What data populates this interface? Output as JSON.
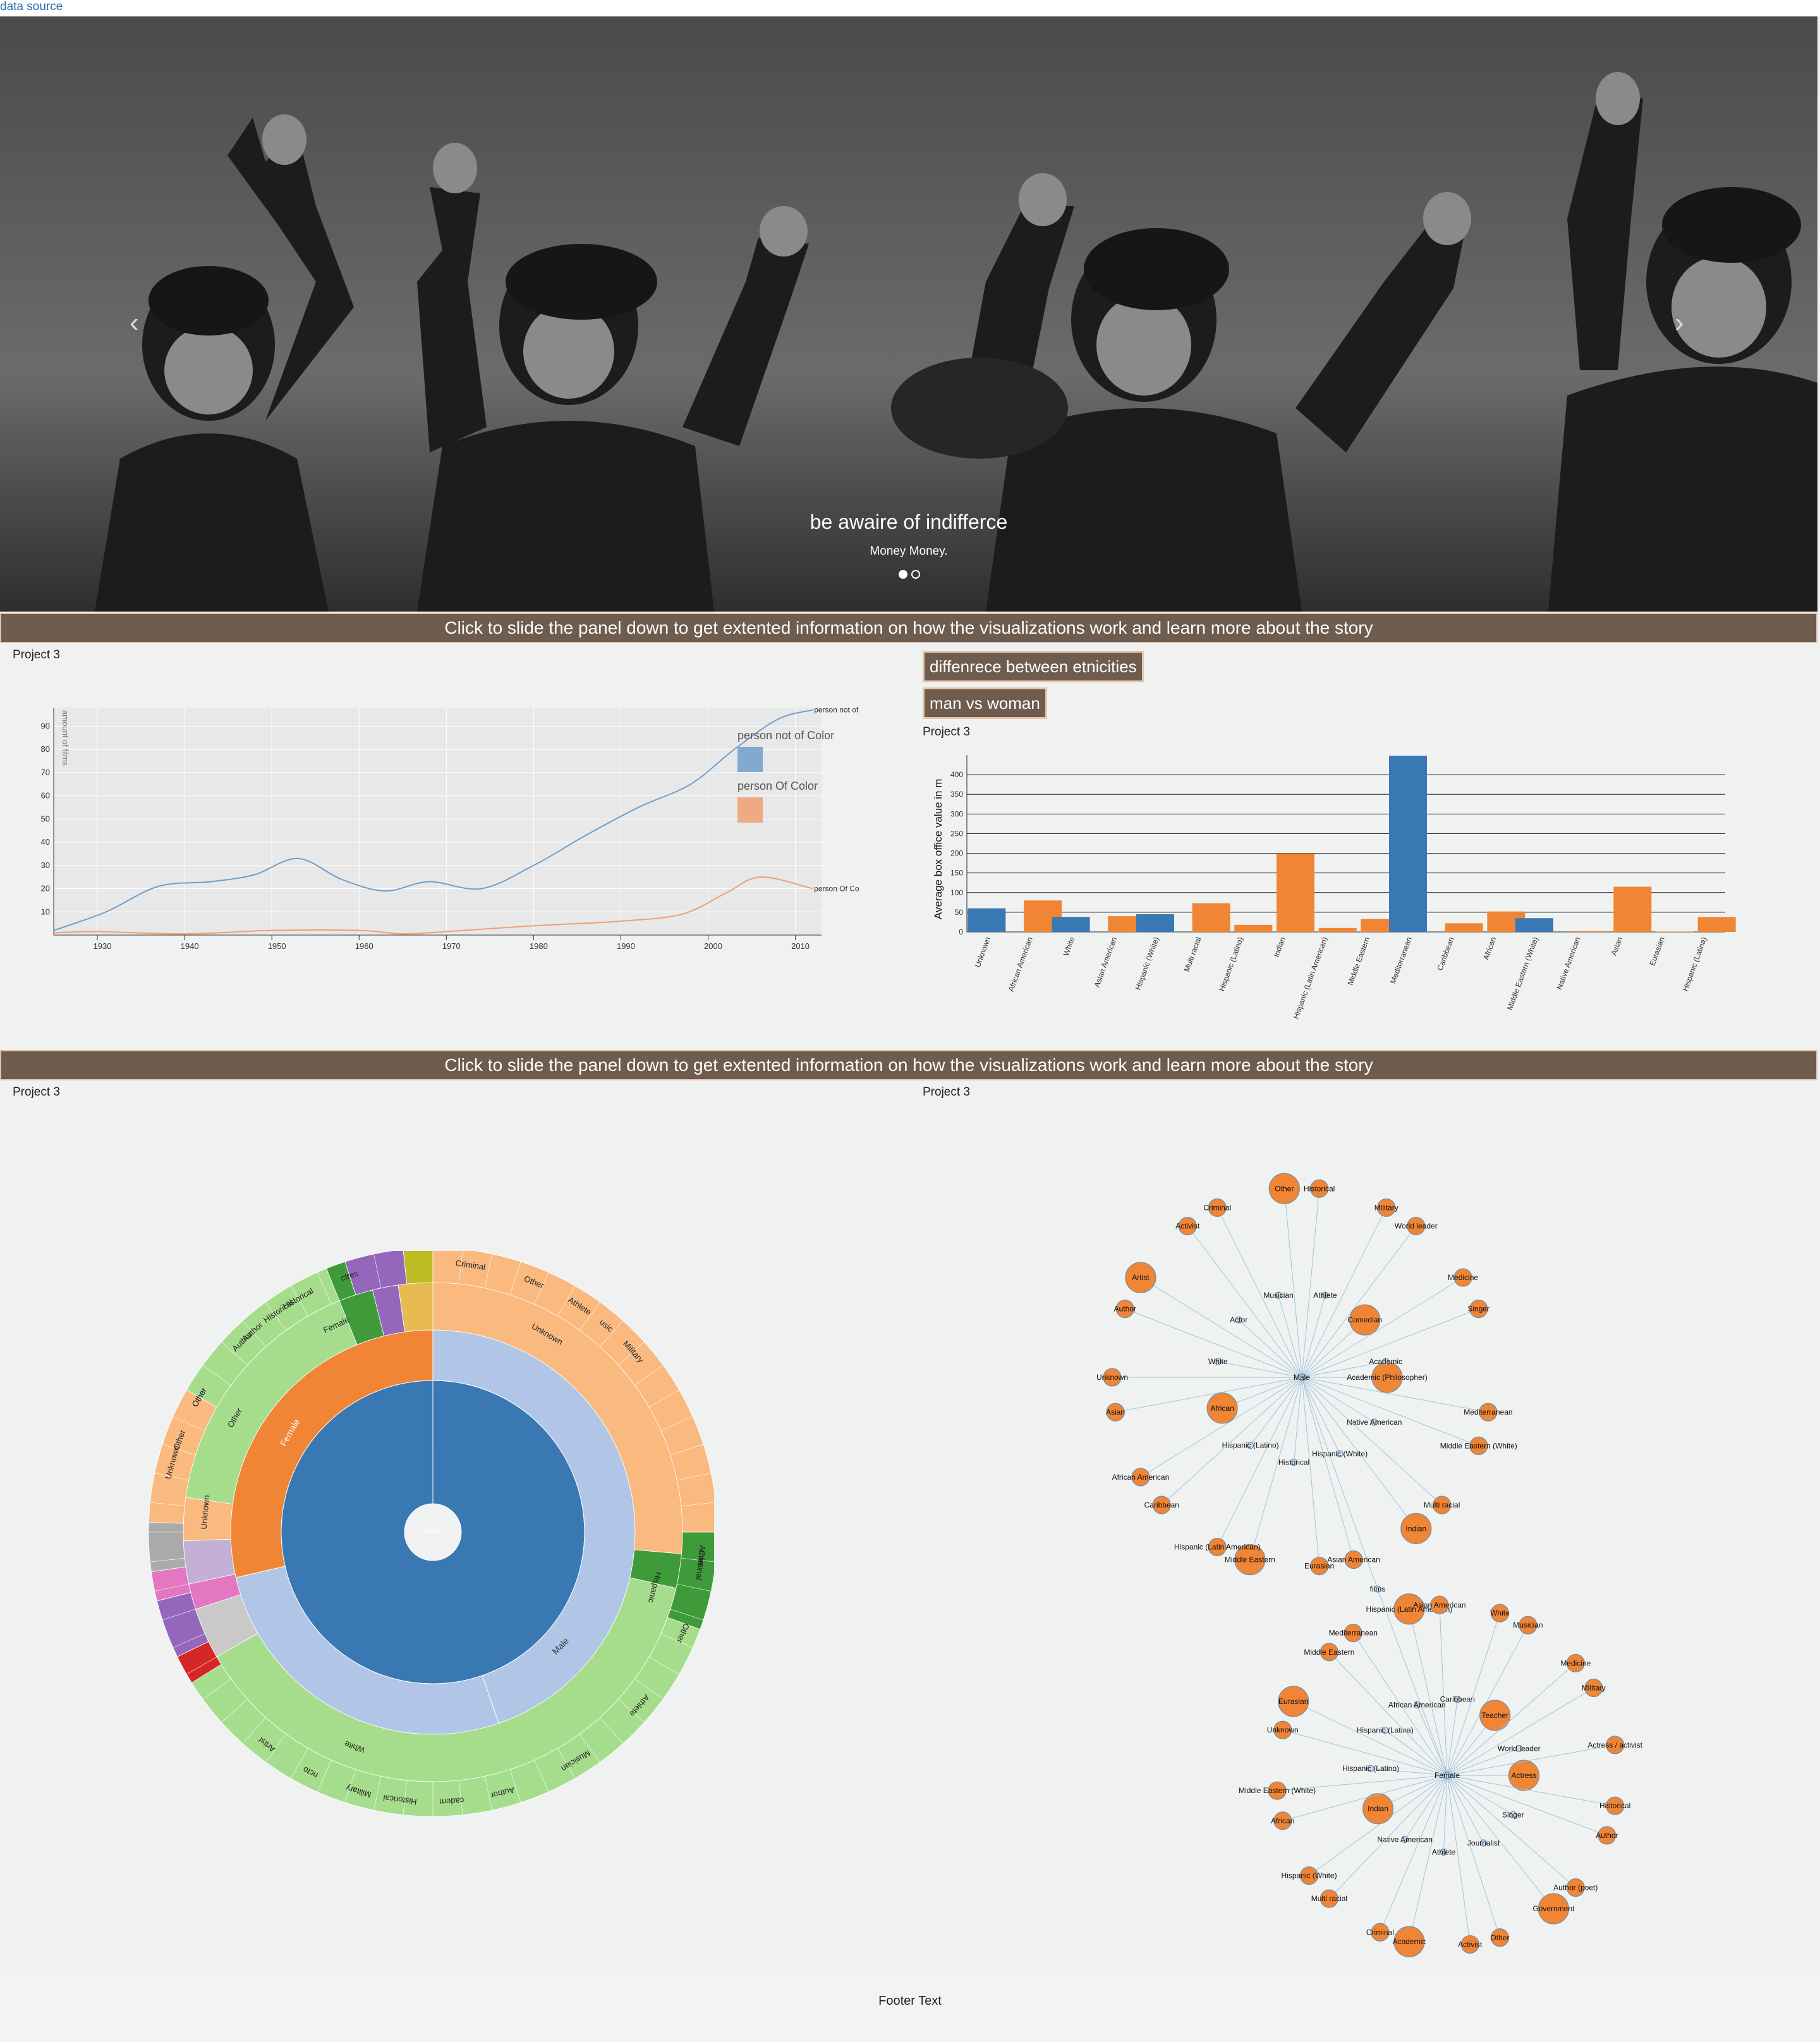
{
  "header": {
    "data_source_link": "data source"
  },
  "carousel": {
    "caption_title": "be awaire of indifferce",
    "caption_subtitle": "Money Money.",
    "slides": 2,
    "active_slide": 1
  },
  "panel_bar_1": "Click to slide the panel down to get extented information on how the visualizations work and learn more about the story",
  "panel_bar_2": "Click to slide the panel down to get extented information on how the visualizations work and learn more about the story",
  "project_labels": {
    "line": "Project 3",
    "bar": "Project 3",
    "sunburst": "Project 3",
    "network": "Project 3"
  },
  "buttons": {
    "ethnicity": "diffenrece between etnicities",
    "gender": "man vs woman"
  },
  "footer": {
    "text": "Footer Text"
  },
  "colors": {
    "blue": "#3a78b4",
    "orange": "#f08535",
    "light_blue": "#b1c6e6",
    "light_orange": "#f9b97f",
    "green": "#a6dd8c",
    "dark_green": "#3f9a3a",
    "bar_brown": "#6e5c4e",
    "network_node": "#f08535",
    "network_link": "#9fc3dd"
  },
  "chart_data": [
    {
      "type": "line",
      "title": "",
      "ylabel": "amount of films",
      "x_ticks": [
        "1930",
        "1940",
        "1950",
        "1960",
        "1970",
        "1980",
        "1990",
        "2000",
        "2010"
      ],
      "y_ticks": [
        "10",
        "20",
        "30",
        "40",
        "50",
        "60",
        "70",
        "80",
        "90"
      ],
      "xlim": [
        1925,
        2013
      ],
      "ylim": [
        0,
        98
      ],
      "grid": true,
      "legend": [
        "person not of Color",
        "person Of Color"
      ],
      "series": [
        {
          "name": "person not of Color",
          "end_label": "person not of C",
          "color": "#6f9fc9",
          "x": [
            1925,
            1931,
            1937,
            1943,
            1948,
            1953,
            1958,
            1963,
            1968,
            1974,
            1980,
            1986,
            1992,
            1998,
            2003,
            2008,
            2012
          ],
          "y": [
            2,
            10,
            21,
            23,
            26,
            33,
            24,
            19,
            23,
            20,
            30,
            43,
            55,
            65,
            80,
            93,
            97
          ]
        },
        {
          "name": "person Of Color",
          "end_label": "person Of Color",
          "color": "#eea071",
          "x": [
            1925,
            1930,
            1940,
            1950,
            1960,
            1965,
            1970,
            1980,
            1990,
            1997,
            2002,
            2006,
            2012
          ],
          "y": [
            1,
            1.5,
            0.5,
            2,
            2,
            0.5,
            1.5,
            4,
            6,
            9,
            18,
            25,
            20
          ]
        }
      ]
    },
    {
      "type": "bar",
      "title": "",
      "ylabel": "Average box office value in m",
      "ylim": [
        0,
        450
      ],
      "y_ticks": [
        "50",
        "100",
        "150",
        "200",
        "250",
        "300",
        "350",
        "400"
      ],
      "categories": [
        "Unknown",
        "African American",
        "White",
        "Asian American",
        "Hispanic (White)",
        "Multi racial",
        "Hispanic (Latino)",
        "Indian",
        "Hispanic (Latin American)",
        "Middle Eastern",
        "Mediterranean",
        "Caribbean",
        "African",
        "Middle Eastern (White)",
        "Native American",
        "Asian",
        "Eurasian",
        "Hispanic (Latina)"
      ],
      "series": [
        {
          "name": "blue",
          "color": "#3a78b4",
          "values": [
            60,
            null,
            38,
            null,
            45,
            null,
            null,
            null,
            null,
            null,
            448,
            null,
            null,
            35,
            null,
            null,
            null,
            null
          ]
        },
        {
          "name": "orange",
          "color": "#f08535",
          "values": [
            null,
            80,
            null,
            40,
            null,
            73,
            18,
            200,
            10,
            33,
            null,
            22,
            52,
            null,
            2,
            115,
            1,
            38
          ]
        }
      ]
    },
    {
      "type": "sunburst",
      "center_label": "films",
      "ring1": [
        {
          "name": "Male",
          "value": 75
        },
        {
          "name": "Female",
          "value": 25
        }
      ],
      "ring2_labels": [
        "Unknown",
        "White",
        "Female",
        "Other",
        "Unknown",
        "Hispanic"
      ],
      "ring3_labels": [
        "Criminal",
        "Other",
        "Athlete",
        "usic",
        "Military",
        "Other",
        "Historical",
        "Author",
        "Other",
        "Unknown",
        "Criminal",
        "Other",
        "Athlete",
        "Musician",
        "Author",
        "cadem",
        "Historical",
        "Military",
        "ncto",
        "Artist",
        "ctres",
        "Historical",
        "Author",
        "Other",
        "Athlet"
      ]
    },
    {
      "type": "network",
      "root": "films",
      "male_hub": "Male",
      "female_hub": "Female",
      "male_labels": [
        "Academic (Philosopher)",
        "Mediterranean",
        "Middle Eastern (White)",
        "Native American",
        "Multi racial",
        "Indian",
        "Hispanic (White)",
        "Asian American",
        "Eurasian",
        "Historical",
        "Middle Eastern",
        "Hispanic (Latin American)",
        "Hispanic (Latino)",
        "Caribbean",
        "African American",
        "African",
        "Asian",
        "Unknown",
        "White",
        "Author",
        "Artist",
        "Actor",
        "Activist",
        "Criminal",
        "Musician",
        "Other",
        "Historical",
        "Athlete",
        "Military",
        "World leader",
        "Comedian",
        "Medicine",
        "Singer",
        "Academic"
      ],
      "female_labels": [
        "Actress",
        "Historical",
        "Author",
        "Singer",
        "Author (poet)",
        "Government",
        "Journalist",
        "Other",
        "Activist",
        "Athlete",
        "Academic",
        "Criminal",
        "Native American",
        "Multi racial",
        "Hispanic (White)",
        "Indian",
        "African",
        "Middle Eastern (White)",
        "Hispanic (Latino)",
        "Unknown",
        "Eurasian",
        "Hispanic (Latina)",
        "Middle Eastern",
        "Mediterranean",
        "African American",
        "Hispanic (Latin American)",
        "Asian American",
        "Caribbean",
        "White",
        "Musician",
        "Teacher",
        "Medicine",
        "Military",
        "World leader",
        "Actress / activist"
      ]
    }
  ]
}
